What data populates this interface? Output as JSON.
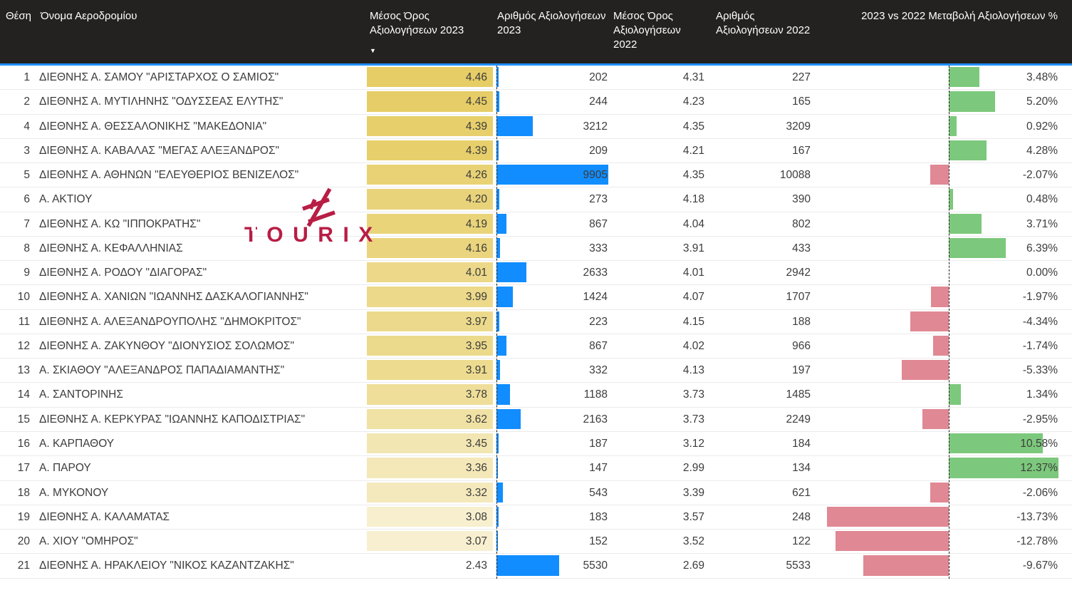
{
  "logo": {
    "brand": "TOURIX"
  },
  "header": {
    "sort_icon": "▼",
    "columns": [
      {
        "label": "Θέση"
      },
      {
        "label": "Όνομα Αεροδρομίου"
      },
      {
        "label": "Μέσος Όρος Αξιολογήσεων 2023",
        "sorted": "desc"
      },
      {
        "label": "Αριθμός Αξιολογήσεων 2023"
      },
      {
        "label": "Μέσος Όρος Αξιολογήσεων 2022"
      },
      {
        "label": "Αριθμός Αξιολογήσεων 2022"
      },
      {
        "label": "2023 vs 2022 Μεταβολή Αξιολογήσεων %"
      }
    ]
  },
  "colors": {
    "header_bg": "#242220",
    "header_text": "#FFFFFF",
    "accent_blue_line": "#1E8FFF",
    "bar_blue": "#118DFF",
    "bar_green": "#7CC87C",
    "bar_red": "#E08894",
    "gold_max": "#E6CD66",
    "gold_min": "#FFFFFF",
    "logo_crimson": "#B81D45",
    "row_text": "#3C3C3C"
  },
  "chart_data": {
    "type": "table",
    "sorted_by": "Μέσος Όρος Αξιολογήσεων 2023",
    "sort_direction": "desc",
    "columns": [
      "Θέση",
      "Όνομα Αεροδρομίου",
      "Μέσος Όρος Αξιολογήσεων 2023",
      "Αριθμός Αξιολογήσεων 2023",
      "Μέσος Όρος Αξιολογήσεων 2022",
      "Αριθμός Αξιολογήσεων 2022",
      "2023 vs 2022 Μεταβολή Αξιολογήσεων %"
    ],
    "embedded_visuals": {
      "avg_2023": "gold heatmap cell background",
      "reviews_2023": "blue data bar from dashed zero axis",
      "change_pct": "green positive / red negative bars around dashed zero axis"
    },
    "rows": [
      {
        "pos": 1,
        "name": "ΔΙΕΘΝΗΣ Α. ΣΑΜΟΥ \"ΑΡΙΣΤΑΡΧΟΣ Ο ΣΑΜΙΟΣ\"",
        "avg_2023": "4.46",
        "reviews_2023": 202,
        "avg_2022": "4.31",
        "reviews_2022": 227,
        "change_pct": "3.48"
      },
      {
        "pos": 2,
        "name": "ΔΙΕΘΝΗΣ Α. ΜΥΤΙΛΗΝΗΣ \"ΟΔΥΣΣΕΑΣ ΕΛΥΤΗΣ\"",
        "avg_2023": "4.45",
        "reviews_2023": 244,
        "avg_2022": "4.23",
        "reviews_2022": 165,
        "change_pct": "5.20"
      },
      {
        "pos": 4,
        "name": "ΔΙΕΘΝΗΣ Α. ΘΕΣΣΑΛΟΝΙΚΗΣ \"ΜΑΚΕΔΟΝΙΑ\"",
        "avg_2023": "4.39",
        "reviews_2023": 3212,
        "avg_2022": "4.35",
        "reviews_2022": 3209,
        "change_pct": "0.92"
      },
      {
        "pos": 3,
        "name": "ΔΙΕΘΝΗΣ Α. ΚΑΒΑΛΑΣ \"ΜΕΓΑΣ ΑΛΕΞΑΝΔΡΟΣ\"",
        "avg_2023": "4.39",
        "reviews_2023": 209,
        "avg_2022": "4.21",
        "reviews_2022": 167,
        "change_pct": "4.28"
      },
      {
        "pos": 5,
        "name": "ΔΙΕΘΝΗΣ Α. ΑΘΗΝΩΝ \"ΕΛΕΥΘΕΡΙΟΣ ΒΕΝΙΖΕΛΟΣ\"",
        "avg_2023": "4.26",
        "reviews_2023": 9905,
        "avg_2022": "4.35",
        "reviews_2022": 10088,
        "change_pct": "-2.07"
      },
      {
        "pos": 6,
        "name": "Α. ΑΚΤΙΟΥ",
        "avg_2023": "4.20",
        "reviews_2023": 273,
        "avg_2022": "4.18",
        "reviews_2022": 390,
        "change_pct": "0.48"
      },
      {
        "pos": 7,
        "name": "ΔΙΕΘΝΗΣ Α. ΚΩ \"ΙΠΠΟΚΡΑΤΗΣ\"",
        "avg_2023": "4.19",
        "reviews_2023": 867,
        "avg_2022": "4.04",
        "reviews_2022": 802,
        "change_pct": "3.71"
      },
      {
        "pos": 8,
        "name": "ΔΙΕΘΝΗΣ Α. ΚΕΦΑΛΛΗΝΙΑΣ",
        "avg_2023": "4.16",
        "reviews_2023": 333,
        "avg_2022": "3.91",
        "reviews_2022": 433,
        "change_pct": "6.39"
      },
      {
        "pos": 9,
        "name": "ΔΙΕΘΝΗΣ Α. ΡΟΔΟΥ \"ΔΙΑΓΟΡΑΣ\"",
        "avg_2023": "4.01",
        "reviews_2023": 2633,
        "avg_2022": "4.01",
        "reviews_2022": 2942,
        "change_pct": "0.00"
      },
      {
        "pos": 10,
        "name": "ΔΙΕΘΝΗΣ Α. ΧΑΝΙΩΝ \"ΙΩΑΝΝΗΣ ΔΑΣΚΑΛΟΓΙΑΝΝΗΣ\"",
        "avg_2023": "3.99",
        "reviews_2023": 1424,
        "avg_2022": "4.07",
        "reviews_2022": 1707,
        "change_pct": "-1.97"
      },
      {
        "pos": 11,
        "name": "ΔΙΕΘΝΗΣ Α. ΑΛΕΞΑΝΔΡΟΥΠΟΛΗΣ \"ΔΗΜΟΚΡΙΤΟΣ\"",
        "avg_2023": "3.97",
        "reviews_2023": 223,
        "avg_2022": "4.15",
        "reviews_2022": 188,
        "change_pct": "-4.34"
      },
      {
        "pos": 12,
        "name": "ΔΙΕΘΝΗΣ Α. ΖΑΚΥΝΘΟΥ \"ΔΙΟΝΥΣΙΟΣ ΣΟΛΩΜΟΣ\"",
        "avg_2023": "3.95",
        "reviews_2023": 867,
        "avg_2022": "4.02",
        "reviews_2022": 966,
        "change_pct": "-1.74"
      },
      {
        "pos": 13,
        "name": "Α. ΣΚΙΑΘΟΥ \"ΑΛΕΞΑΝΔΡΟΣ ΠΑΠΑΔΙΑΜΑΝΤΗΣ\"",
        "avg_2023": "3.91",
        "reviews_2023": 332,
        "avg_2022": "4.13",
        "reviews_2022": 197,
        "change_pct": "-5.33"
      },
      {
        "pos": 14,
        "name": "Α. ΣΑΝΤΟΡΙΝΗΣ",
        "avg_2023": "3.78",
        "reviews_2023": 1188,
        "avg_2022": "3.73",
        "reviews_2022": 1485,
        "change_pct": "1.34"
      },
      {
        "pos": 15,
        "name": "ΔΙΕΘΝΗΣ Α. ΚΕΡΚΥΡΑΣ \"ΙΩΑΝΝΗΣ ΚΑΠΟΔΙΣΤΡΙΑΣ\"",
        "avg_2023": "3.62",
        "reviews_2023": 2163,
        "avg_2022": "3.73",
        "reviews_2022": 2249,
        "change_pct": "-2.95"
      },
      {
        "pos": 16,
        "name": "Α. ΚΑΡΠΑΘΟΥ",
        "avg_2023": "3.45",
        "reviews_2023": 187,
        "avg_2022": "3.12",
        "reviews_2022": 184,
        "change_pct": "10.58"
      },
      {
        "pos": 17,
        "name": "Α. ΠΑΡΟΥ",
        "avg_2023": "3.36",
        "reviews_2023": 147,
        "avg_2022": "2.99",
        "reviews_2022": 134,
        "change_pct": "12.37"
      },
      {
        "pos": 18,
        "name": "Α. ΜΥΚΟΝΟΥ",
        "avg_2023": "3.32",
        "reviews_2023": 543,
        "avg_2022": "3.39",
        "reviews_2022": 621,
        "change_pct": "-2.06"
      },
      {
        "pos": 19,
        "name": "ΔΙΕΘΝΗΣ Α. ΚΑΛΑΜΑΤΑΣ",
        "avg_2023": "3.08",
        "reviews_2023": 183,
        "avg_2022": "3.57",
        "reviews_2022": 248,
        "change_pct": "-13.73"
      },
      {
        "pos": 20,
        "name": "Α. ΧΙΟΥ \"ΟΜΗΡΟΣ\"",
        "avg_2023": "3.07",
        "reviews_2023": 152,
        "avg_2022": "3.52",
        "reviews_2022": 122,
        "change_pct": "-12.78"
      },
      {
        "pos": 21,
        "name": "ΔΙΕΘΝΗΣ Α. ΗΡΑΚΛΕΙΟΥ \"ΝΙΚΟΣ ΚΑΖΑΝΤΖΑΚΗΣ\"",
        "avg_2023": "2.43",
        "reviews_2023": 5530,
        "avg_2022": "2.69",
        "reviews_2022": 5533,
        "change_pct": "-9.67"
      }
    ]
  }
}
